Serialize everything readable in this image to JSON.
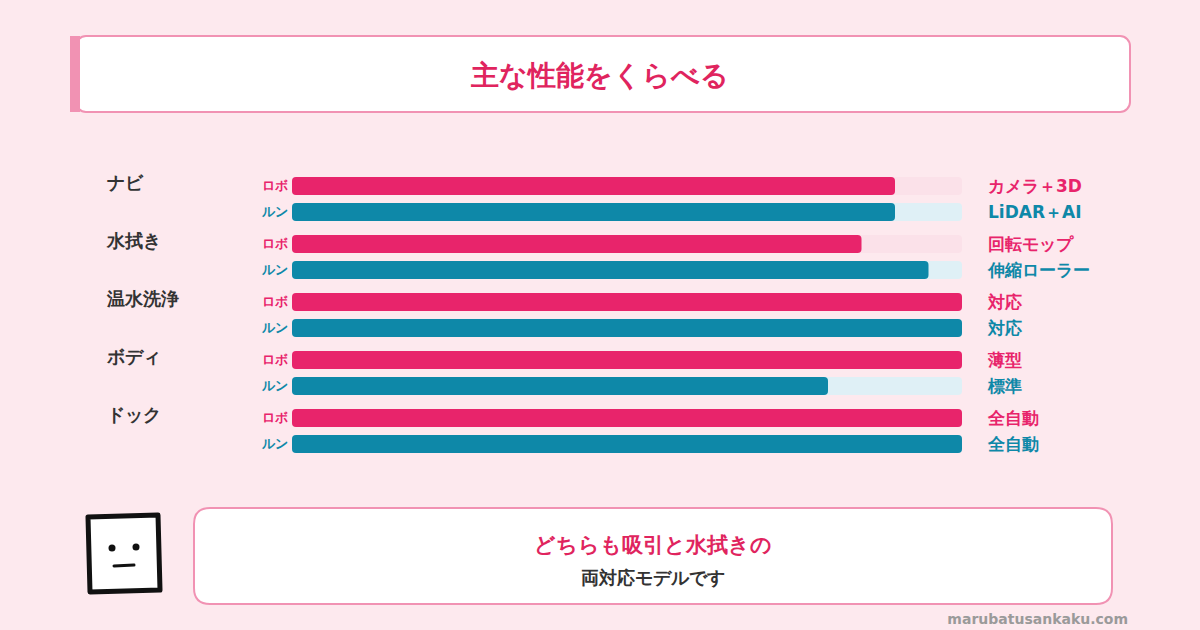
{
  "chart_data": {
    "type": "bar",
    "orientation": "horizontal",
    "title": "主な性能をくらべる",
    "categories": [
      "ナビ",
      "水拭き",
      "温水洗浄",
      "ボディ",
      "ドック"
    ],
    "series": [
      {
        "name": "ロボ",
        "color": "#e8246b",
        "values": [
          90,
          85,
          100,
          100,
          100
        ],
        "annotations": [
          "カメラ＋3D",
          "回転モップ",
          "対応",
          "薄型",
          "全自動"
        ]
      },
      {
        "name": "ルン",
        "color": "#0e88a8",
        "values": [
          90,
          95,
          100,
          80,
          100
        ],
        "annotations": [
          "LiDAR＋AI",
          "伸縮ローラー",
          "対応",
          "標準",
          "全自動"
        ]
      }
    ],
    "xlim": [
      0,
      100
    ],
    "tick_labels": false,
    "grid": false
  },
  "footer": {
    "callout": [
      "どちらも吸引と水拭きの",
      "両対応モデルです"
    ],
    "site": "marubatusankaku.com"
  }
}
